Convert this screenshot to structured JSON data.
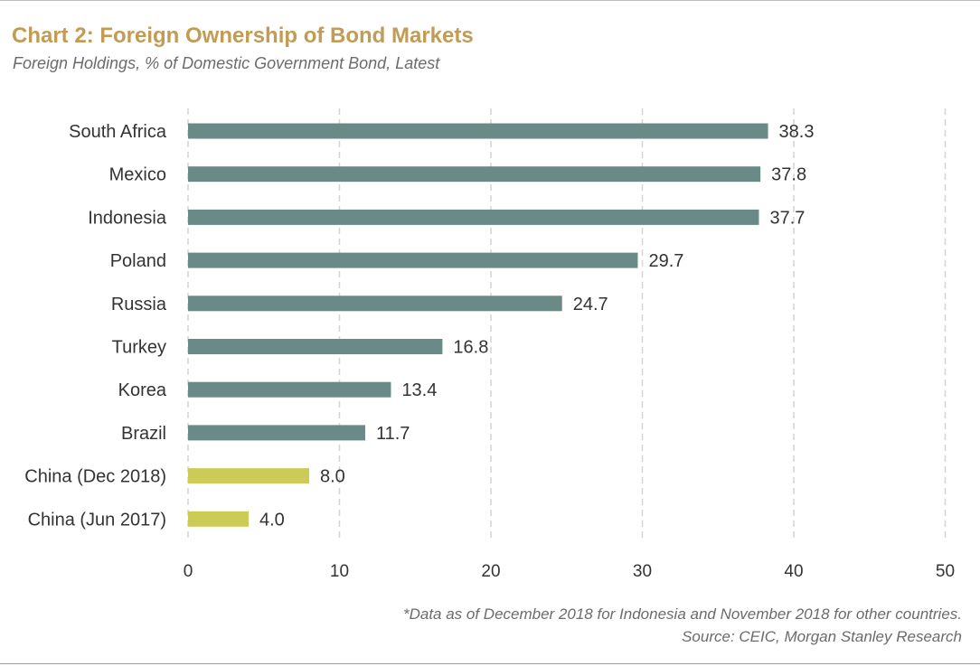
{
  "header": {
    "title": "Chart 2: Foreign Ownership of Bond Markets",
    "subtitle": "Foreign Holdings, % of Domestic Government Bond, Latest"
  },
  "footer": {
    "note": "*Data as of December 2018 for Indonesia and November 2018 for other countries.",
    "source": "Source: CEIC, Morgan Stanley Research"
  },
  "colors": {
    "primary_bar": "#6a8a88",
    "highlight_bar": "#cccb55",
    "gridline": "#d4d4d4",
    "label_text": "#333333",
    "title_text": "#c29b55"
  },
  "chart_data": {
    "type": "bar",
    "orientation": "horizontal",
    "title": "Chart 2: Foreign Ownership of Bond Markets",
    "subtitle": "Foreign Holdings, % of Domestic Government Bond, Latest",
    "categories": [
      "South Africa",
      "Mexico",
      "Indonesia",
      "Poland",
      "Russia",
      "Turkey",
      "Korea",
      "Brazil",
      "China (Dec 2018)",
      "China (Jun 2017)"
    ],
    "values": [
      38.3,
      37.8,
      37.7,
      29.7,
      24.7,
      16.8,
      13.4,
      11.7,
      8.0,
      4.0
    ],
    "value_labels": [
      "38.3",
      "37.8",
      "37.7",
      "29.7",
      "24.7",
      "16.8",
      "13.4",
      "11.7",
      "8.0",
      "4.0"
    ],
    "highlighted": [
      "China (Dec 2018)",
      "China (Jun 2017)"
    ],
    "xlim": [
      0,
      50
    ],
    "xticks": [
      0,
      10,
      20,
      30,
      40,
      50
    ],
    "xtick_labels": [
      "0",
      "10",
      "20",
      "30",
      "40",
      "50"
    ],
    "grid": "vertical dashed",
    "legend": "none"
  }
}
